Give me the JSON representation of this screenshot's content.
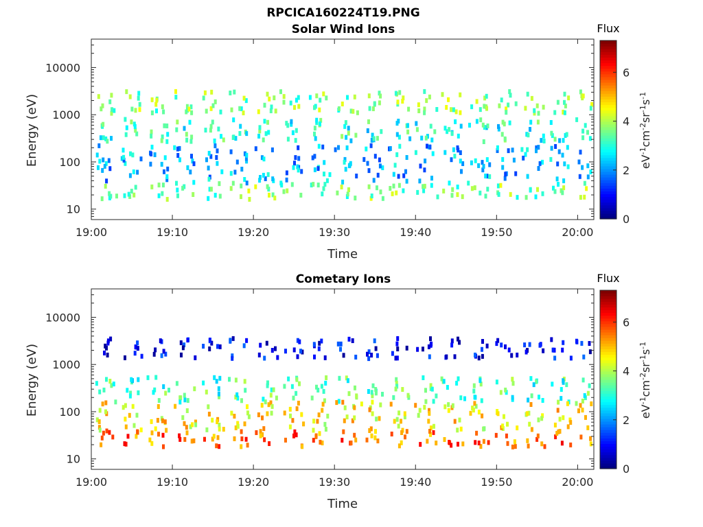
{
  "figure_title": "RPCICA160224T19.PNG",
  "chart_data": [
    {
      "type": "heatmap",
      "title": "Solar Wind Ions",
      "xlabel": "Time",
      "ylabel": "Energy (eV)",
      "y_scale": "log",
      "xlim": [
        "19:00",
        "20:02"
      ],
      "ylim": [
        6,
        40000
      ],
      "xticks": [
        "19:00",
        "19:10",
        "19:20",
        "19:30",
        "19:40",
        "19:50",
        "20:00"
      ],
      "yticks": [
        "10",
        "100",
        "1000",
        "10000"
      ],
      "colorbar": {
        "title": "Flux",
        "label": "eV-1cm-2sr-1s-1",
        "range": [
          0,
          7.3
        ],
        "ticks": [
          "0",
          "2",
          "4",
          "6"
        ],
        "colormap": "jet"
      },
      "sweep_times_min": [
        1.3,
        4.6,
        7.9,
        11.2,
        14.5,
        17.8,
        21.1,
        24.4,
        27.7,
        31.0,
        34.3,
        37.6,
        40.9,
        44.2,
        47.5,
        50.8,
        54.1,
        57.4,
        60.7
      ],
      "bands": [
        {
          "energy_low": 1200,
          "energy_high": 3500,
          "flux": 3.6
        },
        {
          "energy_low": 300,
          "energy_high": 900,
          "flux": 3.0
        },
        {
          "energy_low": 40,
          "energy_high": 250,
          "flux": 2.2
        },
        {
          "energy_low": 18,
          "energy_high": 40,
          "flux": 3.6
        }
      ]
    },
    {
      "type": "heatmap",
      "title": "Cometary Ions",
      "xlabel": "Time",
      "ylabel": "Energy (eV)",
      "y_scale": "log",
      "xlim": [
        "19:00",
        "20:02"
      ],
      "ylim": [
        6,
        40000
      ],
      "xticks": [
        "19:00",
        "19:10",
        "19:20",
        "19:30",
        "19:40",
        "19:50",
        "20:00"
      ],
      "yticks": [
        "10",
        "100",
        "1000",
        "10000"
      ],
      "colorbar": {
        "title": "Flux",
        "label": "eV-1cm-2sr-1s-1",
        "range": [
          0,
          7.3
        ],
        "ticks": [
          "0",
          "2",
          "4",
          "6"
        ],
        "colormap": "jet"
      },
      "sweep_times_min": [
        1.3,
        4.6,
        7.9,
        11.2,
        14.5,
        17.8,
        21.1,
        24.4,
        27.7,
        31.0,
        34.3,
        37.6,
        40.9,
        44.2,
        47.5,
        50.8,
        54.1,
        57.4,
        60.7
      ],
      "bands": [
        {
          "energy_low": 1500,
          "energy_high": 4000,
          "flux": 0.8
        },
        {
          "energy_low": 180,
          "energy_high": 600,
          "flux": 3.2
        },
        {
          "energy_low": 45,
          "energy_high": 180,
          "flux": 4.6
        },
        {
          "energy_low": 20,
          "energy_high": 45,
          "flux": 5.6
        }
      ]
    }
  ]
}
